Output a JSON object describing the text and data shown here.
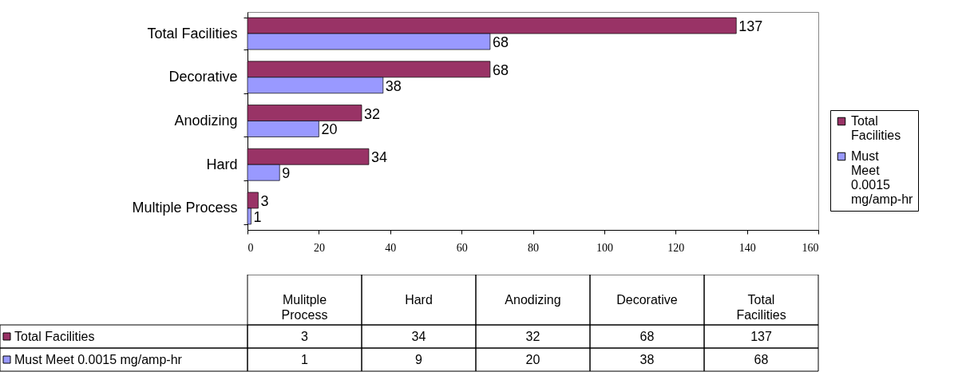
{
  "chart_data": [
    {
      "type": "bar",
      "orientation": "horizontal",
      "categories": [
        "Total Facilities",
        "Decorative",
        "Anodizing",
        "Hard",
        "Multiple Process"
      ],
      "series": [
        {
          "name": "Total Facilities",
          "color": "#993366",
          "values": [
            137,
            68,
            32,
            34,
            3
          ]
        },
        {
          "name": "Must Meet 0.0015 mg/amp-hr",
          "color": "#9999ff",
          "values": [
            68,
            38,
            20,
            9,
            1
          ]
        }
      ],
      "xlim": [
        0,
        160
      ],
      "xticks": [
        0,
        20,
        40,
        60,
        80,
        100,
        120,
        140,
        160
      ],
      "data_labels": true,
      "legend": "right",
      "grid": false
    },
    {
      "type": "other",
      "categories": [
        "Mulitple Process",
        "Hard",
        "Anodizing",
        "Decorative",
        "Total Facilities"
      ],
      "series": [
        {
          "name": "Total Facilities",
          "color": "#993366",
          "values": [
            3,
            34,
            32,
            68,
            137
          ]
        },
        {
          "name": "Must Meet 0.0015 mg/amp-hr",
          "color": "#9999ff",
          "values": [
            1,
            9,
            20,
            38,
            68
          ]
        }
      ],
      "data_labels": true,
      "legend": "left"
    }
  ]
}
